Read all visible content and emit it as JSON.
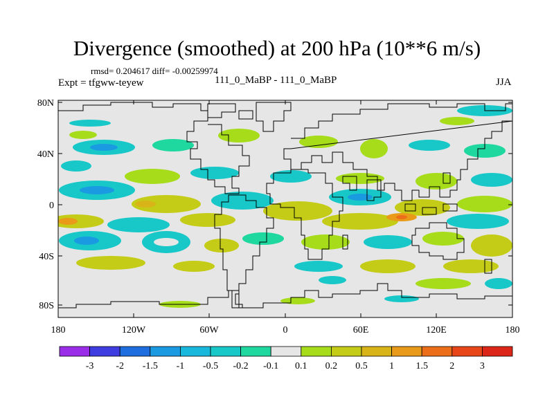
{
  "title": "Divergence (smoothed) at 200 hPa (10**6 m/s)",
  "rmsd_line": "rmsd= 0.204617 diff= -0.00259974",
  "expt_line": "Expt = tfgww-teyew",
  "case_line": "111_0_MaBP - 111_0_MaBP",
  "season": "JJA",
  "lat_labels": [
    "80N",
    "40N",
    "0",
    "40S",
    "80S"
  ],
  "lon_labels": [
    "180",
    "120W",
    "60W",
    "0",
    "60E",
    "120E",
    "180"
  ],
  "colorbar": {
    "labels": [
      "-3",
      "-2",
      "-1.5",
      "-1",
      "-0.5",
      "-0.2",
      "-0.1",
      "0.1",
      "0.2",
      "0.5",
      "1",
      "1.5",
      "2",
      "3"
    ],
    "colors": [
      "#9a2ee8",
      "#3f3ce0",
      "#1e6ee0",
      "#1a9ae0",
      "#18b8dc",
      "#18c8c8",
      "#1ed8a0",
      "#e6e6e6",
      "#a6dc1a",
      "#c4cc18",
      "#d8b418",
      "#e89a18",
      "#ec6e18",
      "#e84618",
      "#dc2618"
    ]
  },
  "colors": {
    "land_background": "#e6e6e6",
    "coast": "#000000"
  }
}
